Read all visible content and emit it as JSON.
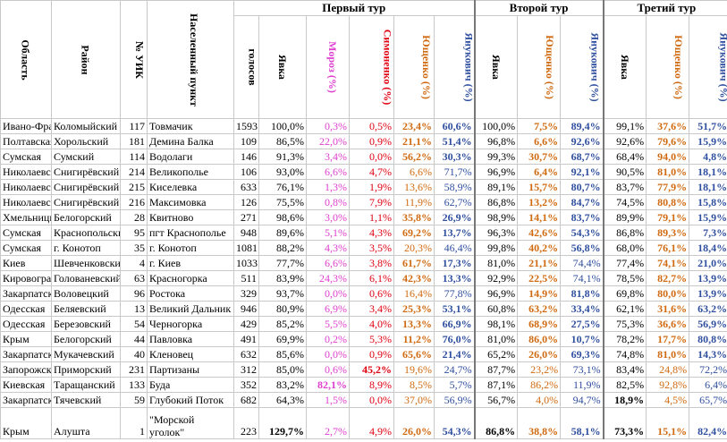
{
  "headers": {
    "tour1": "Первый тур",
    "tour2": "Второй тур",
    "tour3": "Третий тур",
    "oblast": "Область",
    "rayon": "Район",
    "uik": "№ УИК",
    "punkt": "Населенный пункт",
    "golosov": "голосов",
    "yavka1": "Явка",
    "moroz": "Мороз (%)",
    "simonenko": "Симоненко (%)",
    "yushchenko1": "Ющенко (%)",
    "yanukovich1": "Янукович (%)",
    "yavka2": "Явка",
    "yushchenko2": "Ющенко (%)",
    "yanukovich2": "Янукович (%)",
    "yavka3": "Явка",
    "yushchenko3": "Ющенко (%)",
    "yanukovich3": "Янукович (%)"
  },
  "colors": {
    "moroz": "#e040d0",
    "simonenko": "#e00010",
    "yushchenko": "#d06a10",
    "yanukovich": "#2f4f9f"
  },
  "rows": [
    {
      "oblast": "Ивано-Франковская",
      "rayon": "Коломыйский",
      "uik": "117",
      "punkt": "Товмачик",
      "golosov": "1593",
      "y1": "100,0%",
      "moroz": "0,3%",
      "simon": "0,5%",
      "yu1": "23,4%",
      "ya1": "60,6%",
      "y2": "100,0%",
      "yu2": "7,5%",
      "ya2": "89,4%",
      "y3": "99,1%",
      "yu3": "37,6%",
      "ya3": "51,7%",
      "bold": {
        "yu1": 1,
        "ya1": 1,
        "yu2": 1,
        "ya2": 1,
        "yu3": 1,
        "ya3": 1
      }
    },
    {
      "oblast": "Полтавская",
      "rayon": "Хорольский",
      "uik": "181",
      "punkt": "Демина Балка",
      "golosov": "109",
      "y1": "86,5%",
      "moroz": "22,0%",
      "simon": "0,9%",
      "yu1": "21,1%",
      "ya1": "51,4%",
      "y2": "96,8%",
      "yu2": "6,6%",
      "ya2": "92,6%",
      "y3": "92,6%",
      "yu3": "79,6%",
      "ya3": "15,9%",
      "bold": {
        "yu1": 1,
        "ya1": 1,
        "yu2": 1,
        "ya2": 1,
        "yu3": 1,
        "ya3": 1
      }
    },
    {
      "oblast": "Сумская",
      "rayon": "Сумский",
      "uik": "114",
      "punkt": "Водолаги",
      "golosov": "146",
      "y1": "91,3%",
      "moroz": "3,4%",
      "simon": "0,0%",
      "yu1": "56,2%",
      "ya1": "30,3%",
      "y2": "99,3%",
      "yu2": "30,7%",
      "ya2": "68,7%",
      "y3": "68,4%",
      "yu3": "94,0%",
      "ya3": "4,8%",
      "bold": {
        "yu1": 1,
        "ya1": 1,
        "yu2": 1,
        "ya2": 1,
        "yu3": 1,
        "ya3": 1
      }
    },
    {
      "oblast": "Николаевская",
      "rayon": "Снигирёвский",
      "uik": "214",
      "punkt": "Великополье",
      "golosov": "106",
      "y1": "93,0%",
      "moroz": "6,6%",
      "simon": "4,7%",
      "yu1": "6,6%",
      "ya1": "71,7%",
      "y2": "96,9%",
      "yu2": "6,4%",
      "ya2": "92,1%",
      "y3": "90,5%",
      "yu3": "81,0%",
      "ya3": "18,1%",
      "bold": {
        "yu2": 1,
        "ya2": 1,
        "yu3": 1,
        "ya3": 1
      }
    },
    {
      "oblast": "Николаевская",
      "rayon": "Снигирёвский",
      "uik": "215",
      "punkt": "Киселевка",
      "golosov": "633",
      "y1": "76,1%",
      "moroz": "1,3%",
      "simon": "1,9%",
      "yu1": "13,6%",
      "ya1": "58,9%",
      "y2": "89,1%",
      "yu2": "15,7%",
      "ya2": "80,7%",
      "y3": "83,7%",
      "yu3": "77,9%",
      "ya3": "18,1%",
      "bold": {
        "yu2": 1,
        "ya2": 1,
        "yu3": 1,
        "ya3": 1
      }
    },
    {
      "oblast": "Николаевская",
      "rayon": "Снигирёвский",
      "uik": "216",
      "punkt": "Максимовка",
      "golosov": "126",
      "y1": "75,5%",
      "moroz": "0,8%",
      "simon": "7,9%",
      "yu1": "11,9%",
      "ya1": "62,7%",
      "y2": "86,8%",
      "yu2": "13,2%",
      "ya2": "84,7%",
      "y3": "74,5%",
      "yu3": "80,8%",
      "ya3": "15,8%",
      "bold": {
        "yu2": 1,
        "ya2": 1,
        "yu3": 1,
        "ya3": 1
      }
    },
    {
      "oblast": "Хмельницкая",
      "rayon": "Белогорский",
      "uik": "28",
      "punkt": "Квитново",
      "golosov": "271",
      "y1": "98,6%",
      "moroz": "3,0%",
      "simon": "1,1%",
      "yu1": "35,8%",
      "ya1": "26,9%",
      "y2": "98,9%",
      "yu2": "14,1%",
      "ya2": "83,7%",
      "y3": "89,9%",
      "yu3": "79,1%",
      "ya3": "15,9%",
      "bold": {
        "yu1": 1,
        "ya1": 1,
        "yu2": 1,
        "ya2": 1,
        "yu3": 1,
        "ya3": 1
      }
    },
    {
      "oblast": "Сумская",
      "rayon": "Краснопольский",
      "uik": "95",
      "punkt": "пгт Краснополье",
      "golosov": "948",
      "y1": "89,6%",
      "moroz": "5,1%",
      "simon": "4,3%",
      "yu1": "69,2%",
      "ya1": "13,7%",
      "y2": "96,3%",
      "yu2": "42,6%",
      "ya2": "54,3%",
      "y3": "86,8%",
      "yu3": "89,3%",
      "ya3": "7,3%",
      "bold": {
        "yu1": 1,
        "ya1": 1,
        "yu2": 1,
        "ya2": 1,
        "yu3": 1,
        "ya3": 1
      }
    },
    {
      "oblast": "Сумская",
      "rayon": "г. Конотоп",
      "uik": "35",
      "punkt": "г. Конотоп",
      "golosov": "1081",
      "y1": "88,2%",
      "moroz": "4,3%",
      "simon": "3,5%",
      "yu1": "20,3%",
      "ya1": "46,4%",
      "y2": "99,8%",
      "yu2": "40,2%",
      "ya2": "56,8%",
      "y3": "68,0%",
      "yu3": "76,1%",
      "ya3": "18,4%",
      "bold": {
        "yu2": 1,
        "ya2": 1,
        "yu3": 1,
        "ya3": 1
      }
    },
    {
      "oblast": "Киев",
      "rayon": "Шевченковский",
      "uik": "4",
      "punkt": "г. Киев",
      "golosov": "1033",
      "y1": "77,7%",
      "moroz": "6,6%",
      "simon": "3,8%",
      "yu1": "61,7%",
      "ya1": "17,3%",
      "y2": "81,0%",
      "yu2": "21,1%",
      "ya2": "74,4%",
      "y3": "77,4%",
      "yu3": "74,1%",
      "ya3": "21,0%",
      "bold": {
        "yu1": 1,
        "ya1": 1,
        "yu2": 1,
        "yu3": 1,
        "ya3": 1
      }
    },
    {
      "oblast": "Кировоградская",
      "rayon": "Голованевский",
      "uik": "63",
      "punkt": "Красногорка",
      "golosov": "511",
      "y1": "83,9%",
      "moroz": "24,3%",
      "simon": "6,1%",
      "yu1": "42,3%",
      "ya1": "13,3%",
      "y2": "92,9%",
      "yu2": "22,5%",
      "ya2": "74,1%",
      "y3": "78,5%",
      "yu3": "82,7%",
      "ya3": "13,9%",
      "bold": {
        "yu1": 1,
        "ya1": 1,
        "yu2": 1,
        "yu3": 1,
        "ya3": 1
      }
    },
    {
      "oblast": "Закарпатская",
      "rayon": "Воловецкий",
      "uik": "96",
      "punkt": "Ростока",
      "golosov": "329",
      "y1": "93,7%",
      "moroz": "0,0%",
      "simon": "0,6%",
      "yu1": "16,4%",
      "ya1": "77,8%",
      "y2": "96,9%",
      "yu2": "14,9%",
      "ya2": "81,8%",
      "y3": "69,8%",
      "yu3": "80,0%",
      "ya3": "13,9%",
      "bold": {
        "yu2": 1,
        "ya2": 1,
        "yu3": 1,
        "ya3": 1
      }
    },
    {
      "oblast": "Одесская",
      "rayon": "Беляевский",
      "uik": "13",
      "punkt": "Великий Дальник",
      "golosov": "946",
      "y1": "80,9%",
      "moroz": "6,9%",
      "simon": "3,4%",
      "yu1": "25,3%",
      "ya1": "53,1%",
      "y2": "60,8%",
      "yu2": "63,2%",
      "ya2": "33,4%",
      "y3": "62,1%",
      "yu3": "31,6%",
      "ya3": "63,2%",
      "bold": {
        "yu1": 1,
        "ya1": 1,
        "yu2": 1,
        "ya2": 1,
        "yu3": 1,
        "ya3": 1
      }
    },
    {
      "oblast": "Одесская",
      "rayon": "Березовский",
      "uik": "54",
      "punkt": "Черногорка",
      "golosov": "429",
      "y1": "85,2%",
      "moroz": "5,5%",
      "simon": "4,0%",
      "yu1": "13,3%",
      "ya1": "66,9%",
      "y2": "98,1%",
      "yu2": "68,9%",
      "ya2": "27,5%",
      "y3": "75,3%",
      "yu3": "36,6%",
      "ya3": "56,9%",
      "bold": {
        "yu1": 1,
        "ya1": 1,
        "yu2": 1,
        "ya2": 1,
        "yu3": 1,
        "ya3": 1
      }
    },
    {
      "oblast": "Крым",
      "rayon": "Белогорский",
      "uik": "44",
      "punkt": "Павловка",
      "golosov": "491",
      "y1": "69,9%",
      "moroz": "0,2%",
      "simon": "5,3%",
      "yu1": "11,2%",
      "ya1": "76,0%",
      "y2": "81,0%",
      "yu2": "86,0%",
      "ya2": "10,7%",
      "y3": "78,2%",
      "yu3": "17,7%",
      "ya3": "80,8%",
      "bold": {
        "yu1": 1,
        "ya1": 1,
        "yu2": 1,
        "ya2": 1,
        "yu3": 1,
        "ya3": 1
      }
    },
    {
      "oblast": "Закарпатская",
      "rayon": "Мукачевский",
      "uik": "40",
      "punkt": "Кленовец",
      "golosov": "632",
      "y1": "85,6%",
      "moroz": "0,0%",
      "simon": "0,9%",
      "yu1": "65,6%",
      "ya1": "21,4%",
      "y2": "65,2%",
      "yu2": "26,0%",
      "ya2": "69,3%",
      "y3": "74,8%",
      "yu3": "81,0%",
      "ya3": "14,3%",
      "bold": {
        "yu1": 1,
        "ya1": 1,
        "yu2": 1,
        "ya2": 1,
        "yu3": 1,
        "ya3": 1
      }
    },
    {
      "oblast": "Запорожская",
      "rayon": "Приморский",
      "uik": "231",
      "punkt": "Партизаны",
      "golosov": "312",
      "y1": "85,0%",
      "moroz": "0,6%",
      "simon": "45,2%",
      "yu1": "19,6%",
      "ya1": "24,7%",
      "y2": "87,7%",
      "yu2": "23,2%",
      "ya2": "73,1%",
      "y3": "83,4%",
      "yu3": "24,8%",
      "ya3": "72,2%",
      "bold": {
        "simon": 1
      }
    },
    {
      "oblast": "Киевская",
      "rayon": "Таращанский",
      "uik": "133",
      "punkt": "Буда",
      "golosov": "352",
      "y1": "83,2%",
      "moroz": "82,1%",
      "simon": "8,9%",
      "yu1": "8,5%",
      "ya1": "5,7%",
      "y2": "87,1%",
      "yu2": "86,2%",
      "ya2": "11,9%",
      "y3": "82,5%",
      "yu3": "92,8%",
      "ya3": "6,4%",
      "bold": {
        "moroz": 1
      }
    },
    {
      "oblast": "Закарпатская",
      "rayon": "Тячевский",
      "uik": "59",
      "punkt": "Глубокий Поток",
      "golosov": "682",
      "y1": "64,3%",
      "moroz": "1,5%",
      "simon": "0,0%",
      "yu1": "37,0%",
      "ya1": "56,9%",
      "y2": "56,7%",
      "yu2": "4,0%",
      "ya2": "94,7%",
      "y3": "18,9%",
      "yu3": "4,5%",
      "ya3": "65,7%",
      "bold": {
        "y3": 1
      }
    },
    {
      "oblast": "Крым",
      "rayon": "Алушта",
      "uik": "1",
      "punkt": "\"Морской уголок\"",
      "golosov": "223",
      "y1": "129,7%",
      "moroz": "2,7%",
      "simon": "4,9%",
      "yu1": "26,0%",
      "ya1": "54,3%",
      "y2": "86,8%",
      "yu2": "38,8%",
      "ya2": "58,1%",
      "y3": "73,3%",
      "yu3": "15,1%",
      "ya3": "82,4%",
      "bold": {
        "y1": 1,
        "yu1": 1,
        "ya1": 1,
        "y2": 1,
        "yu2": 1,
        "ya2": 1,
        "y3": 1,
        "yu3": 1,
        "ya3": 1
      },
      "tall": true
    }
  ]
}
